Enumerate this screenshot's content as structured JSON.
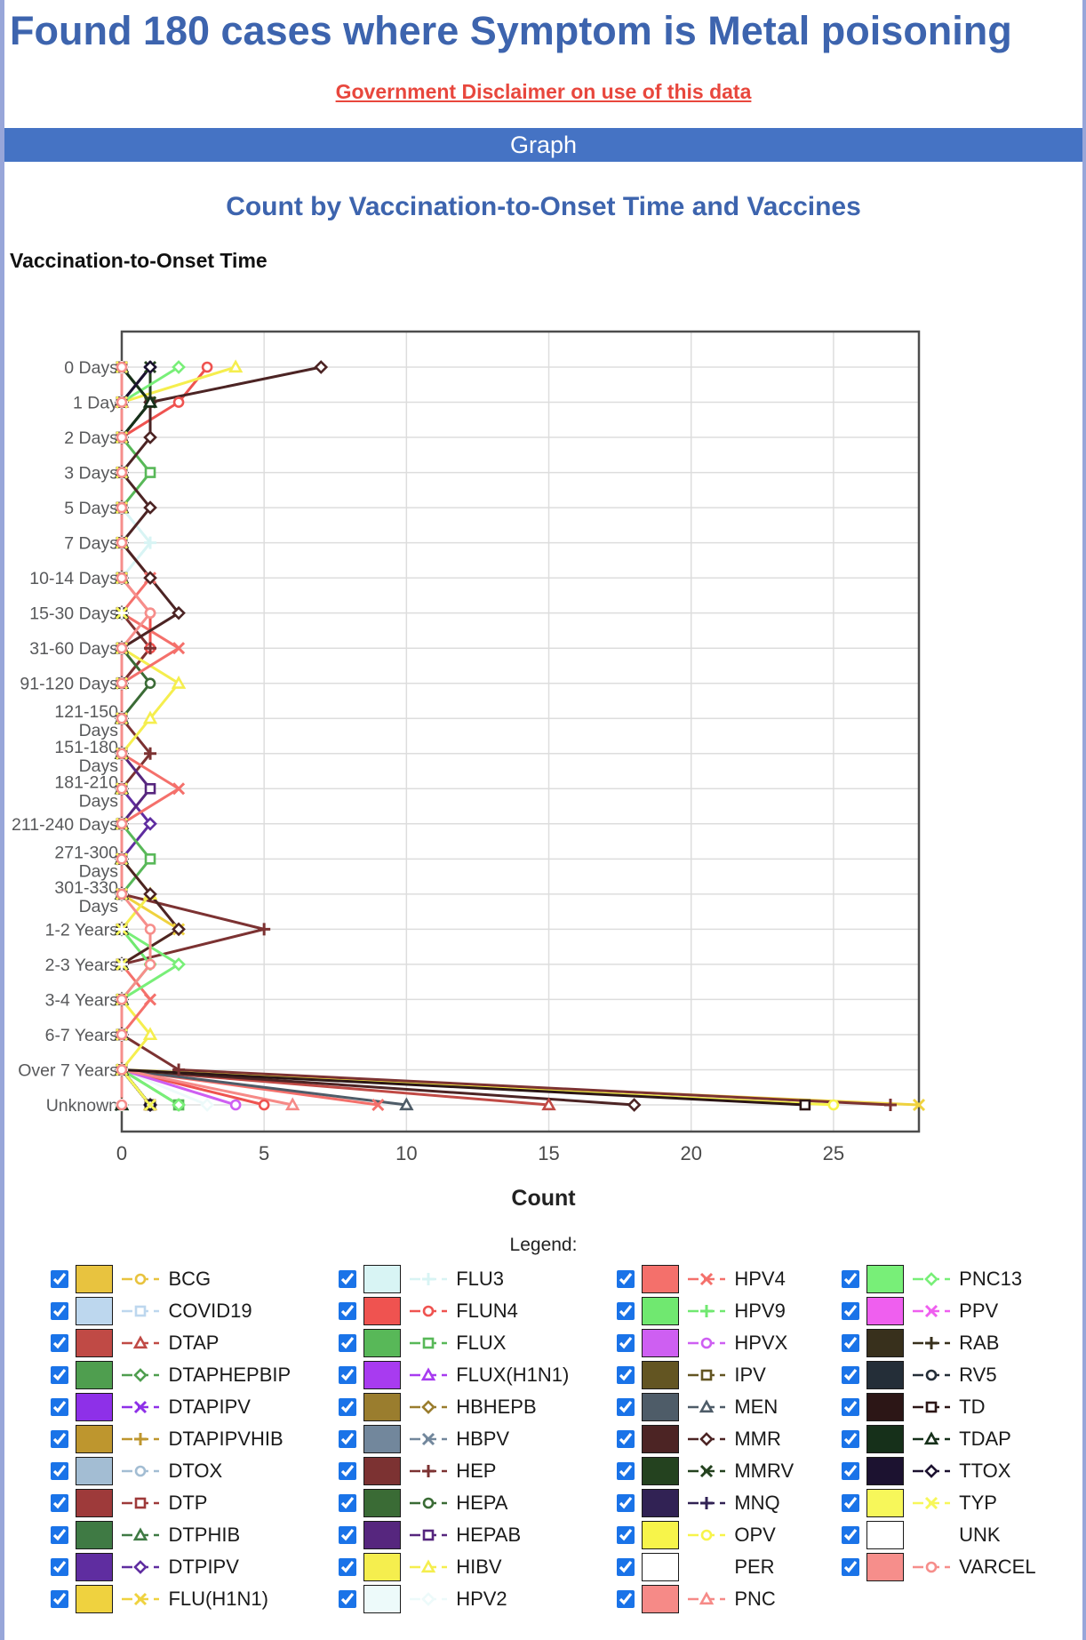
{
  "header": {
    "title": "Found 180 cases where Symptom is Metal poisoning",
    "disclaimer_link": "Government Disclaimer on use of this data",
    "section_title": "Graph"
  },
  "legend": {
    "title": "Legend:",
    "columns": 4,
    "all_checked": true
  },
  "colors": {
    "title_blue": "#3D64AE",
    "bar_blue": "#4573C4",
    "link_red": "#E8473D",
    "page_border": "#98A6D9",
    "plot_border": "#4D4D4D",
    "grid": "#DDDDDD",
    "axis_text": "#58595B",
    "tick_text": "#4A4A4A",
    "checkbox_blue": "#1A73E8"
  },
  "chart_data": {
    "type": "line",
    "title": "Count by Vaccination-to-Onset Time and Vaccines",
    "y_axis_title": "Vaccination-to-Onset Time",
    "x_axis_title": "Count",
    "xlabel": "Count",
    "ylabel": "Vaccination-to-Onset Time",
    "xlim": [
      0,
      28
    ],
    "x_ticks": [
      0,
      5,
      10,
      15,
      20,
      25
    ],
    "grid": true,
    "legend_position": "bottom",
    "categories": [
      "0 Days",
      "1 Day",
      "2 Days",
      "3 Days",
      "5 Days",
      "7 Days",
      "10-14 Days",
      "15-30 Days",
      "31-60 Days",
      "91-120 Days",
      "121-150 Days",
      "151-180 Days",
      "181-210 Days",
      "211-240 Days",
      "271-300 Days",
      "301-330 Days",
      "1-2 Years",
      "2-3 Years",
      "3-4 Years",
      "6-7 Years",
      "Over 7 Years",
      "Unknown"
    ],
    "wrapped_category_labels": [
      "121-150 Days",
      "151-180 Days",
      "181-210 Days",
      "271-300 Days",
      "301-330 Days"
    ],
    "series": [
      {
        "name": "BCG",
        "color": "#E8C33F",
        "marker": "circle",
        "values": [
          0,
          0,
          0,
          0,
          0,
          0,
          0,
          0,
          0,
          0,
          0,
          0,
          0,
          0,
          0,
          0,
          0,
          0,
          0,
          0,
          0,
          1
        ]
      },
      {
        "name": "COVID19",
        "color": "#BDD7EE",
        "marker": "square",
        "values": [
          0,
          0,
          0,
          0,
          0,
          0,
          0,
          0,
          0,
          0,
          0,
          0,
          0,
          0,
          0,
          0,
          0,
          0,
          0,
          0,
          0,
          1
        ]
      },
      {
        "name": "DTAP",
        "color": "#C04A45",
        "marker": "triangle",
        "values": [
          0,
          0,
          0,
          0,
          0,
          0,
          0,
          0,
          0,
          0,
          0,
          0,
          0,
          0,
          0,
          0,
          0,
          0,
          0,
          0,
          0,
          15
        ]
      },
      {
        "name": "DTAPHEPBIP",
        "color": "#4F9E4F",
        "marker": "diamond",
        "values": [
          0,
          0,
          0,
          0,
          0,
          0,
          0,
          0,
          0,
          0,
          0,
          0,
          0,
          0,
          0,
          0,
          0,
          0,
          0,
          0,
          0,
          0
        ]
      },
      {
        "name": "DTAPIPV",
        "color": "#8E30E8",
        "marker": "x",
        "values": [
          0,
          0,
          0,
          0,
          0,
          0,
          0,
          0,
          0,
          0,
          0,
          0,
          0,
          0,
          0,
          0,
          0,
          0,
          0,
          0,
          0,
          1
        ]
      },
      {
        "name": "DTAPIPVHIB",
        "color": "#BE962E",
        "marker": "plus",
        "values": [
          0,
          0,
          0,
          0,
          0,
          0,
          0,
          0,
          0,
          0,
          0,
          0,
          0,
          0,
          0,
          0,
          0,
          0,
          0,
          0,
          0,
          1
        ]
      },
      {
        "name": "DTOX",
        "color": "#A3BDD3",
        "marker": "circle",
        "values": [
          0,
          0,
          0,
          0,
          0,
          0,
          0,
          0,
          0,
          0,
          0,
          0,
          0,
          0,
          0,
          0,
          0,
          0,
          0,
          0,
          0,
          1
        ]
      },
      {
        "name": "DTP",
        "color": "#9E3A3A",
        "marker": "square",
        "values": [
          0,
          0,
          0,
          0,
          0,
          0,
          0,
          0,
          0,
          0,
          0,
          0,
          0,
          0,
          0,
          0,
          0,
          0,
          0,
          0,
          0,
          1
        ]
      },
      {
        "name": "DTPHIB",
        "color": "#3F7A44",
        "marker": "triangle",
        "values": [
          0,
          1,
          0,
          0,
          0,
          0,
          0,
          0,
          0,
          0,
          0,
          0,
          0,
          0,
          0,
          0,
          0,
          0,
          0,
          0,
          0,
          0
        ]
      },
      {
        "name": "DTPIPV",
        "color": "#5F2DA0",
        "marker": "diamond",
        "values": [
          0,
          0,
          0,
          0,
          0,
          0,
          0,
          0,
          0,
          0,
          0,
          0,
          0,
          1,
          0,
          0,
          0,
          0,
          0,
          0,
          0,
          1
        ]
      },
      {
        "name": "FLU(H1N1)",
        "color": "#EFD23F",
        "marker": "x",
        "values": [
          0,
          0,
          0,
          0,
          0,
          0,
          0,
          0,
          0,
          0,
          0,
          0,
          0,
          0,
          0,
          0,
          2,
          0,
          0,
          0,
          0,
          28
        ]
      },
      {
        "name": "FLU3",
        "color": "#D8F4F4",
        "marker": "plus",
        "values": [
          0,
          0,
          0,
          0,
          0,
          1,
          0,
          0,
          0,
          0,
          0,
          0,
          0,
          0,
          0,
          0,
          0,
          0,
          0,
          0,
          0,
          1
        ]
      },
      {
        "name": "FLUN4",
        "color": "#EF5350",
        "marker": "circle",
        "values": [
          3,
          2,
          0,
          0,
          0,
          0,
          0,
          1,
          1,
          0,
          0,
          0,
          0,
          0,
          0,
          0,
          0,
          0,
          0,
          0,
          0,
          5
        ]
      },
      {
        "name": "FLUX",
        "color": "#58B858",
        "marker": "square",
        "values": [
          0,
          0,
          0,
          1,
          0,
          0,
          0,
          0,
          0,
          0,
          0,
          0,
          0,
          0,
          1,
          0,
          0,
          0,
          0,
          0,
          0,
          2
        ]
      },
      {
        "name": "FLUX(H1N1)",
        "color": "#A83BF0",
        "marker": "triangle",
        "values": [
          0,
          0,
          0,
          0,
          0,
          0,
          0,
          0,
          0,
          0,
          0,
          0,
          0,
          0,
          0,
          0,
          0,
          0,
          0,
          0,
          0,
          1
        ]
      },
      {
        "name": "HBHEPB",
        "color": "#9A7D2E",
        "marker": "diamond",
        "values": [
          0,
          0,
          0,
          0,
          0,
          0,
          0,
          0,
          0,
          0,
          0,
          0,
          0,
          0,
          0,
          0,
          0,
          0,
          0,
          0,
          0,
          1
        ]
      },
      {
        "name": "HBPV",
        "color": "#72879C",
        "marker": "x",
        "values": [
          0,
          0,
          0,
          0,
          0,
          0,
          0,
          0,
          0,
          0,
          0,
          0,
          0,
          0,
          0,
          0,
          0,
          0,
          0,
          0,
          0,
          1
        ]
      },
      {
        "name": "HEP",
        "color": "#7C3232",
        "marker": "plus",
        "values": [
          0,
          0,
          0,
          0,
          0,
          0,
          0,
          0,
          1,
          0,
          0,
          1,
          0,
          0,
          0,
          0,
          5,
          0,
          0,
          0,
          2,
          27
        ]
      },
      {
        "name": "HEPA",
        "color": "#3A6B35",
        "marker": "circle",
        "values": [
          0,
          0,
          0,
          0,
          0,
          0,
          0,
          0,
          0,
          1,
          0,
          0,
          0,
          0,
          0,
          0,
          0,
          0,
          0,
          0,
          0,
          1
        ]
      },
      {
        "name": "HEPAB",
        "color": "#56267E",
        "marker": "square",
        "values": [
          0,
          0,
          0,
          0,
          0,
          0,
          0,
          0,
          0,
          0,
          0,
          0,
          1,
          0,
          0,
          0,
          0,
          0,
          0,
          0,
          0,
          1
        ]
      },
      {
        "name": "HIBV",
        "color": "#F5EE4E",
        "marker": "triangle",
        "values": [
          4,
          0,
          0,
          0,
          0,
          0,
          0,
          0,
          0,
          2,
          1,
          0,
          0,
          0,
          0,
          1,
          0,
          0,
          0,
          1,
          0,
          1
        ]
      },
      {
        "name": "HPV2",
        "color": "#EDFAFA",
        "marker": "diamond",
        "values": [
          0,
          0,
          0,
          0,
          0,
          0,
          0,
          0,
          0,
          0,
          0,
          0,
          0,
          0,
          0,
          0,
          0,
          0,
          0,
          0,
          0,
          3
        ]
      },
      {
        "name": "HPV4",
        "color": "#F4706B",
        "marker": "x",
        "values": [
          0,
          0,
          0,
          0,
          0,
          0,
          1,
          0,
          2,
          0,
          0,
          0,
          2,
          0,
          0,
          0,
          0,
          0,
          1,
          0,
          0,
          9
        ]
      },
      {
        "name": "HPV9",
        "color": "#70E870",
        "marker": "plus",
        "values": [
          0,
          0,
          0,
          0,
          0,
          0,
          0,
          0,
          0,
          0,
          0,
          0,
          0,
          0,
          0,
          0,
          0,
          1,
          0,
          0,
          0,
          2
        ]
      },
      {
        "name": "HPVX",
        "color": "#CE5FF2",
        "marker": "circle",
        "values": [
          0,
          0,
          0,
          0,
          0,
          0,
          0,
          0,
          0,
          0,
          0,
          0,
          0,
          0,
          0,
          0,
          0,
          0,
          0,
          0,
          0,
          4
        ]
      },
      {
        "name": "IPV",
        "color": "#635522",
        "marker": "square",
        "values": [
          0,
          1,
          0,
          0,
          0,
          0,
          0,
          0,
          0,
          0,
          0,
          0,
          0,
          0,
          0,
          0,
          0,
          0,
          0,
          0,
          0,
          1
        ]
      },
      {
        "name": "MEN",
        "color": "#4E5C68",
        "marker": "triangle",
        "values": [
          0,
          0,
          0,
          0,
          0,
          0,
          0,
          0,
          0,
          0,
          0,
          0,
          0,
          0,
          0,
          0,
          0,
          0,
          0,
          0,
          0,
          10
        ]
      },
      {
        "name": "MMR",
        "color": "#4C2424",
        "marker": "diamond",
        "values": [
          7,
          1,
          1,
          0,
          1,
          0,
          1,
          2,
          0,
          0,
          0,
          0,
          0,
          0,
          0,
          1,
          2,
          0,
          0,
          0,
          0,
          18
        ]
      },
      {
        "name": "MMRV",
        "color": "#24421F",
        "marker": "x",
        "values": [
          1,
          1,
          0,
          0,
          0,
          0,
          0,
          0,
          0,
          0,
          0,
          0,
          0,
          0,
          0,
          0,
          0,
          0,
          0,
          0,
          0,
          1
        ]
      },
      {
        "name": "MNQ",
        "color": "#312254",
        "marker": "plus",
        "values": [
          1,
          0,
          0,
          0,
          0,
          0,
          0,
          0,
          0,
          0,
          0,
          0,
          0,
          0,
          0,
          0,
          0,
          0,
          0,
          0,
          0,
          1
        ]
      },
      {
        "name": "OPV",
        "color": "#F7F44A",
        "marker": "circle",
        "values": [
          0,
          0,
          0,
          0,
          0,
          0,
          0,
          0,
          0,
          0,
          0,
          0,
          0,
          0,
          0,
          0,
          0,
          0,
          0,
          0,
          0,
          25
        ]
      },
      {
        "name": "PER",
        "color": "#FFFFFF",
        "marker": "square",
        "values": [
          0,
          0,
          0,
          0,
          0,
          0,
          0,
          0,
          0,
          0,
          0,
          0,
          0,
          0,
          0,
          0,
          0,
          0,
          0,
          0,
          0,
          0
        ]
      },
      {
        "name": "PNC",
        "color": "#F68A87",
        "marker": "triangle",
        "values": [
          0,
          0,
          0,
          0,
          0,
          0,
          0,
          0,
          0,
          0,
          0,
          0,
          0,
          0,
          0,
          0,
          0,
          0,
          0,
          0,
          0,
          6
        ]
      },
      {
        "name": "PNC13",
        "color": "#78EF78",
        "marker": "diamond",
        "values": [
          2,
          0,
          0,
          0,
          0,
          0,
          0,
          0,
          0,
          0,
          0,
          0,
          0,
          0,
          0,
          0,
          0,
          2,
          0,
          0,
          0,
          2
        ]
      },
      {
        "name": "PPV",
        "color": "#EF5FEF",
        "marker": "x",
        "values": [
          0,
          0,
          0,
          0,
          0,
          0,
          0,
          0,
          0,
          0,
          0,
          0,
          0,
          0,
          0,
          0,
          0,
          0,
          0,
          0,
          0,
          1
        ]
      },
      {
        "name": "RAB",
        "color": "#38301C",
        "marker": "plus",
        "values": [
          0,
          0,
          0,
          0,
          0,
          0,
          0,
          0,
          0,
          0,
          0,
          0,
          0,
          0,
          0,
          0,
          0,
          0,
          0,
          0,
          0,
          1
        ]
      },
      {
        "name": "RV5",
        "color": "#242E38",
        "marker": "circle",
        "values": [
          0,
          0,
          0,
          0,
          0,
          0,
          0,
          0,
          0,
          0,
          0,
          0,
          0,
          0,
          0,
          0,
          0,
          0,
          0,
          0,
          0,
          1
        ]
      },
      {
        "name": "TD",
        "color": "#2C1616",
        "marker": "square",
        "values": [
          0,
          0,
          0,
          0,
          0,
          0,
          0,
          0,
          0,
          0,
          0,
          0,
          0,
          0,
          0,
          0,
          0,
          0,
          0,
          0,
          0,
          24
        ]
      },
      {
        "name": "TDAP",
        "color": "#16301A",
        "marker": "triangle",
        "values": [
          0,
          1,
          0,
          0,
          0,
          0,
          0,
          0,
          0,
          0,
          0,
          0,
          0,
          0,
          0,
          0,
          0,
          0,
          0,
          0,
          0,
          0
        ]
      },
      {
        "name": "TTOX",
        "color": "#1C1230",
        "marker": "diamond",
        "values": [
          1,
          0,
          0,
          0,
          0,
          0,
          0,
          0,
          0,
          0,
          0,
          0,
          0,
          0,
          0,
          0,
          0,
          0,
          0,
          0,
          0,
          1
        ]
      },
      {
        "name": "TYP",
        "color": "#F7F75A",
        "marker": "x",
        "values": [
          0,
          0,
          0,
          0,
          0,
          0,
          0,
          0,
          0,
          0,
          0,
          0,
          0,
          0,
          0,
          0,
          0,
          0,
          0,
          0,
          0,
          1
        ]
      },
      {
        "name": "UNK",
        "color": "#FFFFFF",
        "marker": "plus",
        "values": [
          0,
          0,
          0,
          0,
          0,
          0,
          0,
          0,
          0,
          0,
          0,
          0,
          0,
          0,
          0,
          0,
          0,
          0,
          0,
          0,
          0,
          0
        ]
      },
      {
        "name": "VARCEL",
        "color": "#F68E8B",
        "marker": "circle",
        "values": [
          0,
          0,
          0,
          0,
          0,
          0,
          0,
          1,
          0,
          0,
          0,
          0,
          0,
          0,
          0,
          0,
          1,
          1,
          0,
          0,
          0,
          0
        ]
      }
    ]
  }
}
